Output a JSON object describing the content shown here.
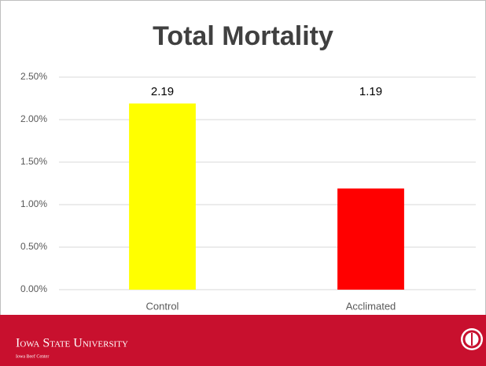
{
  "chart_data": {
    "type": "bar",
    "title": "Total Mortality",
    "categories": [
      "Control",
      "Acclimated"
    ],
    "values": [
      2.19,
      1.19
    ],
    "colors": [
      "#ffff00",
      "#ff0000"
    ],
    "ylim": [
      0,
      2.5
    ],
    "yticks": [
      {
        "value": 0,
        "label": "0.00%"
      },
      {
        "value": 0.5,
        "label": "0.50%"
      },
      {
        "value": 1,
        "label": "1.00%"
      },
      {
        "value": 1.5,
        "label": "1.50%"
      },
      {
        "value": 2,
        "label": "2.00%"
      },
      {
        "value": 2.5,
        "label": "2.50%"
      }
    ],
    "grid": true
  },
  "footer": {
    "university": "Iowa State University",
    "center": "Iowa Beef Center"
  }
}
